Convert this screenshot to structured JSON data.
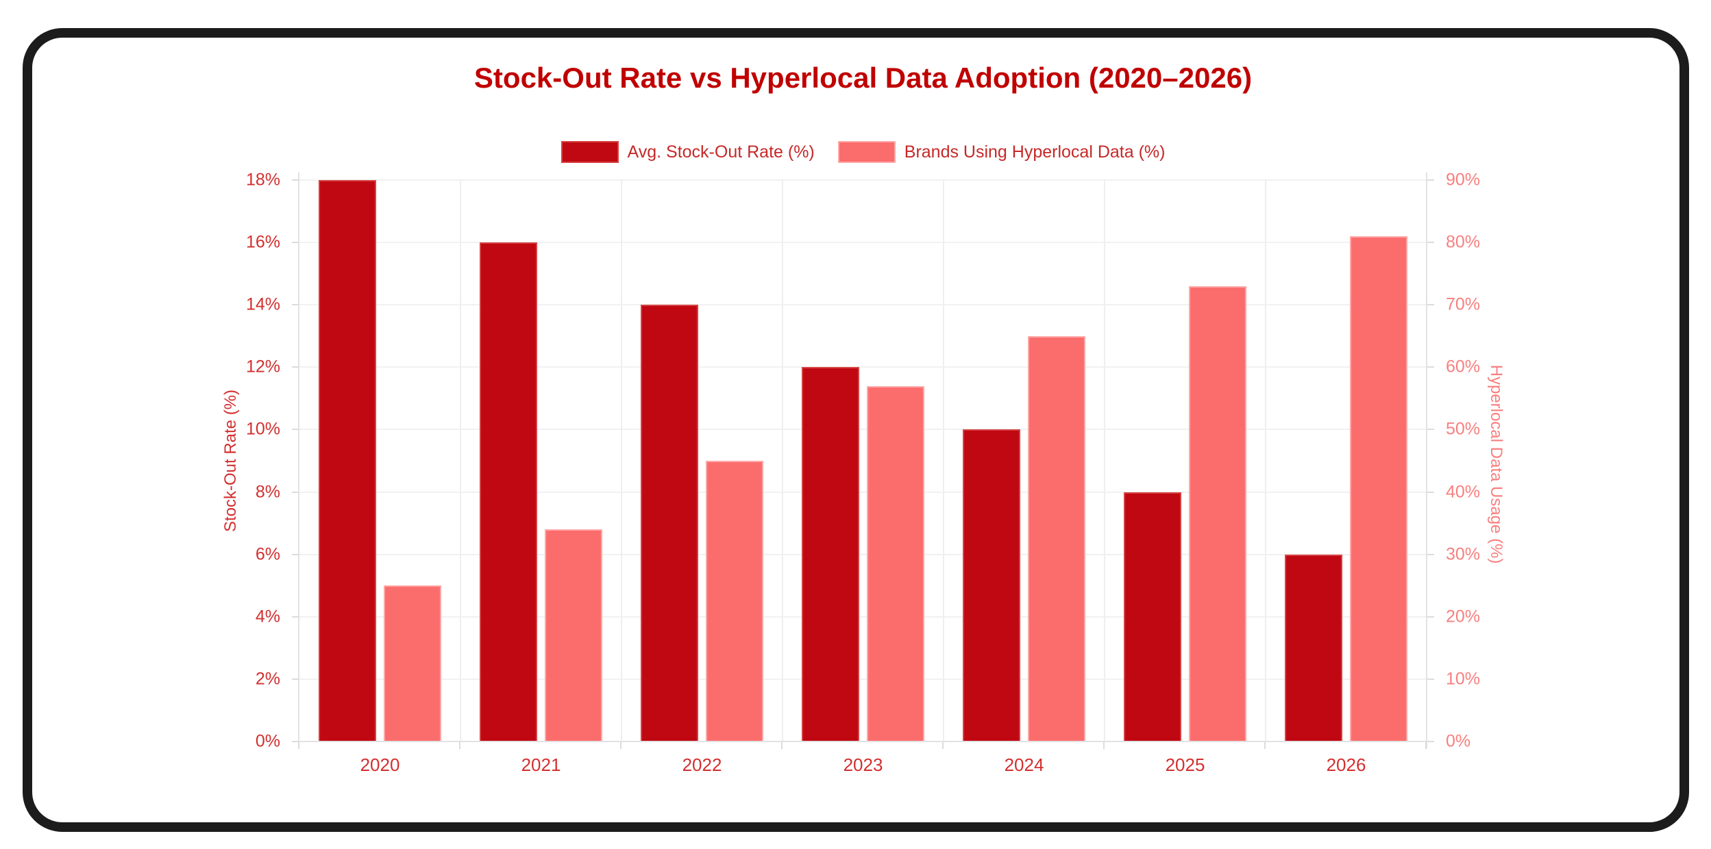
{
  "frame": {
    "border_color": "#1c1c1c"
  },
  "chart_data": {
    "type": "bar",
    "title": "Stock-Out Rate vs Hyperlocal Data Adoption (2020–2026)",
    "title_color": "#c00000",
    "categories": [
      "2020",
      "2021",
      "2022",
      "2023",
      "2024",
      "2025",
      "2026"
    ],
    "series": [
      {
        "name": "Avg. Stock-Out Rate (%)",
        "axis": "left",
        "values": [
          18,
          16,
          14,
          12,
          10,
          8,
          6
        ],
        "color": "#c00812",
        "border_color": "#d54343"
      },
      {
        "name": "Brands Using Hyperlocal Data (%)",
        "axis": "right",
        "values": [
          25,
          34,
          45,
          57,
          65,
          73,
          81
        ],
        "color": "#fb6d6d",
        "border_color": "#ffa8a8"
      }
    ],
    "axes": {
      "left": {
        "label": "Stock-Out Rate (%)",
        "min": 0,
        "max": 18,
        "step": 2,
        "ticks": [
          "0%",
          "2%",
          "4%",
          "6%",
          "8%",
          "10%",
          "12%",
          "14%",
          "16%",
          "18%"
        ],
        "color": "#d32f2f"
      },
      "right": {
        "label": "Hyperlocal Data Usage (%)",
        "min": 0,
        "max": 90,
        "step": 10,
        "ticks": [
          "0%",
          "10%",
          "20%",
          "30%",
          "40%",
          "50%",
          "60%",
          "70%",
          "80%",
          "90%"
        ],
        "color": "#f87f7f"
      },
      "x": {
        "color": "#d32f2f"
      }
    },
    "legend": {
      "position": "top",
      "text_color": "#c62828"
    },
    "grid": {
      "show": true,
      "h_color": "#f1f1f1",
      "v_color": "#efefef",
      "axis_line_color": "#e2e2e2",
      "tick_color": "#dcdcdc"
    },
    "ylim_left": [
      0,
      18
    ],
    "ylim_right": [
      0,
      90
    ]
  }
}
